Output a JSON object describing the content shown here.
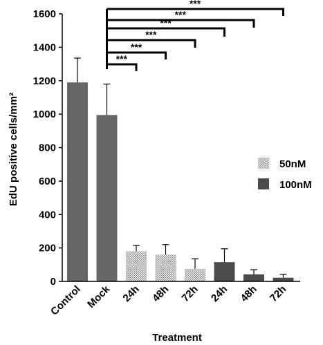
{
  "chart_data": {
    "type": "bar",
    "xlabel": "Treatment",
    "ylabel": "EdU  positive cells/mm²",
    "ylim": [
      0,
      1600
    ],
    "yticks": [
      0,
      200,
      400,
      600,
      800,
      1000,
      1200,
      1400,
      1600
    ],
    "grid": false,
    "legend_position": "right",
    "categories": [
      "Control",
      "Mock",
      "24h",
      "48h",
      "72h",
      "24h",
      "48h",
      "72h"
    ],
    "values": [
      1190,
      995,
      180,
      160,
      75,
      115,
      42,
      22
    ],
    "errors": [
      145,
      185,
      35,
      60,
      60,
      80,
      28,
      20
    ],
    "bar_groups": [
      "control",
      "control",
      "50nM",
      "50nM",
      "50nM",
      "100nM",
      "100nM",
      "100nM"
    ],
    "legend": [
      {
        "key": "50nM",
        "label": "50nM",
        "pattern": "dotted"
      },
      {
        "key": "100nM",
        "label": "100nM",
        "pattern": "solid"
      }
    ],
    "colors": {
      "control": "#676767",
      "100nM": "#4b4b4b",
      "50nM_dot": "#8c8c8c",
      "50nM_bg": "#ffffff",
      "axis": "#000000"
    },
    "significance": [
      {
        "from": 1,
        "to": 2,
        "label": "***"
      },
      {
        "from": 1,
        "to": 3,
        "label": "***"
      },
      {
        "from": 1,
        "to": 4,
        "label": "***"
      },
      {
        "from": 1,
        "to": 5,
        "label": "***"
      },
      {
        "from": 1,
        "to": 6,
        "label": "***"
      },
      {
        "from": 1,
        "to": 7,
        "label": "***"
      }
    ]
  }
}
